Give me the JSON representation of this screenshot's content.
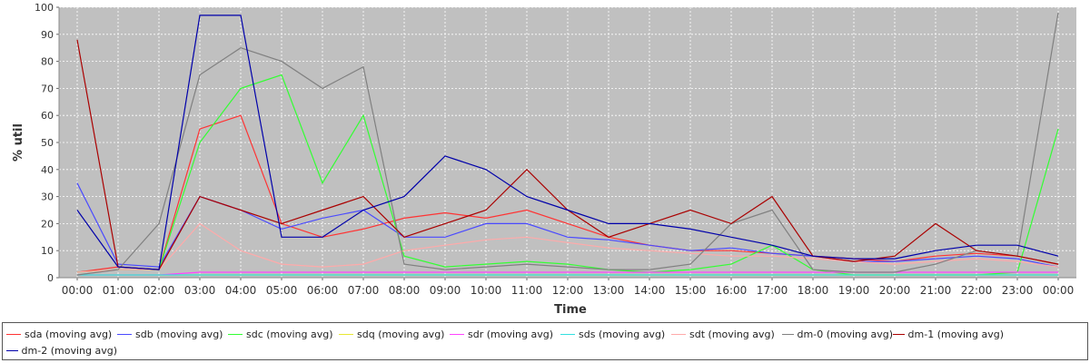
{
  "chart_data": {
    "type": "line",
    "title": "",
    "xlabel": "Time",
    "ylabel": "% util",
    "ylim": [
      0,
      100
    ],
    "yticks": [
      "0",
      "10",
      "20",
      "30",
      "40",
      "50",
      "60",
      "70",
      "80",
      "90",
      "100"
    ],
    "x": [
      "00:00",
      "01:00",
      "02:00",
      "03:00",
      "04:00",
      "05:00",
      "06:00",
      "07:00",
      "08:00",
      "09:00",
      "10:00",
      "11:00",
      "12:00",
      "13:00",
      "14:00",
      "15:00",
      "16:00",
      "17:00",
      "18:00",
      "19:00",
      "20:00",
      "21:00",
      "22:00",
      "23:00",
      "00:00"
    ],
    "grid": true,
    "legend_position": "bottom",
    "series": [
      {
        "name": "sda (moving avg)",
        "color": "#ff3333",
        "values": [
          2,
          4,
          3,
          55,
          60,
          20,
          15,
          18,
          22,
          24,
          22,
          25,
          20,
          15,
          12,
          10,
          10,
          9,
          8,
          7,
          6,
          8,
          9,
          8,
          5
        ]
      },
      {
        "name": "sdb (moving avg)",
        "color": "#4a4aff",
        "values": [
          35,
          5,
          4,
          30,
          25,
          18,
          22,
          25,
          15,
          15,
          20,
          20,
          15,
          14,
          12,
          10,
          11,
          9,
          8,
          6,
          6,
          7,
          8,
          7,
          4
        ]
      },
      {
        "name": "sdc (moving avg)",
        "color": "#33ff33",
        "values": [
          2,
          3,
          3,
          50,
          70,
          75,
          35,
          60,
          8,
          4,
          5,
          6,
          5,
          3,
          2,
          3,
          5,
          12,
          3,
          1,
          1,
          1,
          1,
          2,
          55
        ]
      },
      {
        "name": "sdq (moving avg)",
        "color": "#e8e833",
        "values": [
          1,
          1,
          1,
          1,
          1,
          1,
          1,
          1,
          1,
          1,
          1,
          1,
          1,
          1,
          1,
          1,
          1,
          1,
          1,
          1,
          1,
          1,
          1,
          1,
          1
        ]
      },
      {
        "name": "sdr (moving avg)",
        "color": "#ff44ff",
        "values": [
          1,
          1,
          1,
          2,
          2,
          2,
          2,
          2,
          2,
          2,
          2,
          2,
          2,
          2,
          2,
          2,
          2,
          2,
          2,
          2,
          2,
          2,
          2,
          2,
          2
        ]
      },
      {
        "name": "sds (moving avg)",
        "color": "#33e0e0",
        "values": [
          1,
          1,
          1,
          1,
          1,
          1,
          1,
          1,
          1,
          1,
          1,
          1,
          1,
          1,
          1,
          1,
          1,
          1,
          1,
          1,
          1,
          1,
          1,
          1,
          1
        ]
      },
      {
        "name": "sdt (moving avg)",
        "color": "#ffaaaa",
        "values": [
          2,
          3,
          3,
          20,
          10,
          5,
          4,
          5,
          10,
          12,
          14,
          15,
          13,
          11,
          10,
          9,
          8,
          8,
          7,
          6,
          5,
          6,
          7,
          6,
          4
        ]
      },
      {
        "name": "dm-0 (moving avg)",
        "color": "#808080",
        "values": [
          1,
          3,
          20,
          75,
          85,
          80,
          70,
          78,
          5,
          3,
          4,
          5,
          4,
          3,
          3,
          5,
          20,
          25,
          3,
          2,
          2,
          5,
          10,
          8,
          98
        ]
      },
      {
        "name": "dm-1 (moving avg)",
        "color": "#aa0000",
        "values": [
          88,
          4,
          3,
          30,
          25,
          20,
          25,
          30,
          15,
          20,
          25,
          40,
          25,
          15,
          20,
          25,
          20,
          30,
          8,
          6,
          8,
          20,
          10,
          8,
          5
        ]
      },
      {
        "name": "dm-2 (moving avg)",
        "color": "#0000aa",
        "values": [
          25,
          4,
          3,
          97,
          97,
          15,
          15,
          25,
          30,
          45,
          40,
          30,
          25,
          20,
          20,
          18,
          15,
          12,
          8,
          7,
          7,
          10,
          12,
          12,
          8
        ]
      }
    ]
  }
}
